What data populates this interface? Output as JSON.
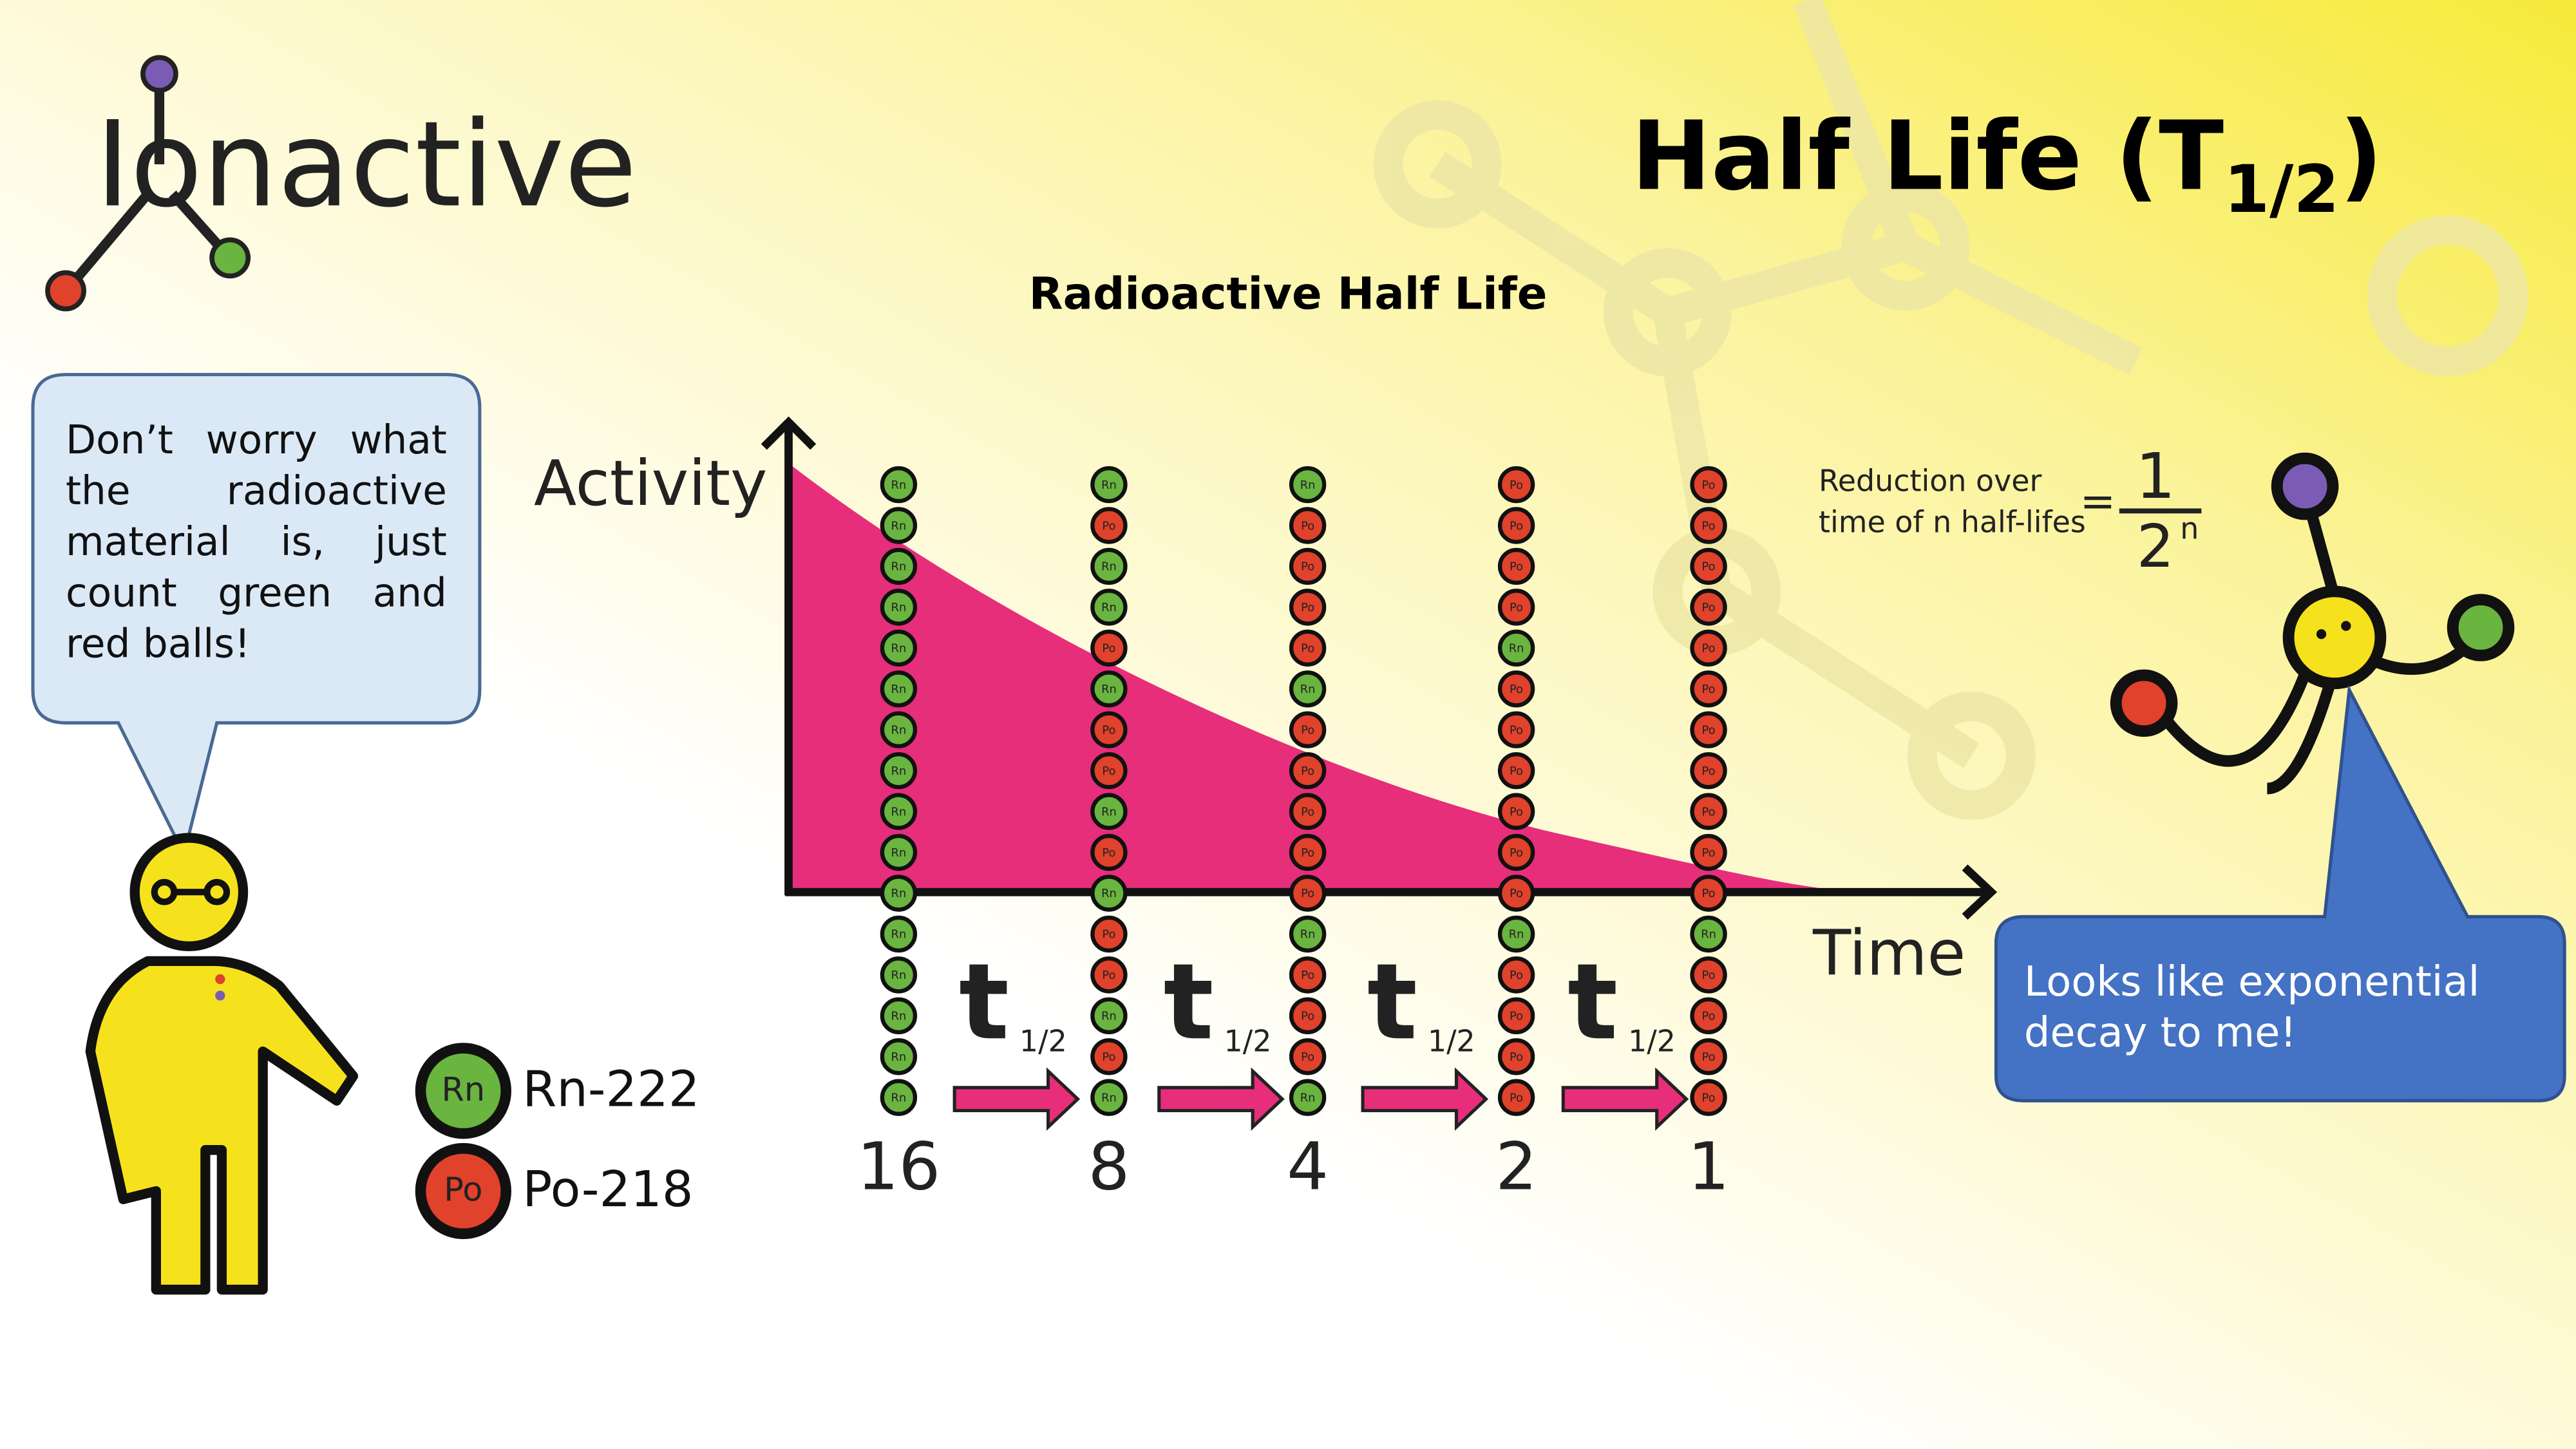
{
  "logo": {
    "text": "Ionactive"
  },
  "title": {
    "main": "Half Life (T",
    "subscript": "1/2",
    "close": ")"
  },
  "diagram": {
    "title": "Radioactive Half Life",
    "y_label": "Activity",
    "x_label": "Time",
    "columns": [
      {
        "count": 16,
        "balls": [
          "Rn",
          "Rn",
          "Rn",
          "Rn",
          "Rn",
          "Rn",
          "Rn",
          "Rn",
          "Rn",
          "Rn",
          "Rn",
          "Rn",
          "Rn",
          "Rn",
          "Rn",
          "Rn"
        ]
      },
      {
        "count": 8,
        "balls": [
          "Rn",
          "Po",
          "Rn",
          "Rn",
          "Po",
          "Rn",
          "Po",
          "Po",
          "Rn",
          "Po",
          "Rn",
          "Po",
          "Po",
          "Rn",
          "Po",
          "Rn"
        ]
      },
      {
        "count": 4,
        "balls": [
          "Rn",
          "Po",
          "Po",
          "Po",
          "Po",
          "Rn",
          "Po",
          "Po",
          "Po",
          "Po",
          "Po",
          "Rn",
          "Po",
          "Po",
          "Po",
          "Rn"
        ]
      },
      {
        "count": 2,
        "balls": [
          "Po",
          "Po",
          "Po",
          "Po",
          "Rn",
          "Po",
          "Po",
          "Po",
          "Po",
          "Po",
          "Po",
          "Rn",
          "Po",
          "Po",
          "Po",
          "Po"
        ]
      },
      {
        "count": 1,
        "balls": [
          "Po",
          "Po",
          "Po",
          "Po",
          "Po",
          "Po",
          "Po",
          "Po",
          "Po",
          "Po",
          "Po",
          "Rn",
          "Po",
          "Po",
          "Po",
          "Po"
        ]
      }
    ],
    "steps": [
      {
        "symbol": "t",
        "subscript": "1/2"
      },
      {
        "symbol": "t",
        "subscript": "1/2"
      },
      {
        "symbol": "t",
        "subscript": "1/2"
      },
      {
        "symbol": "t",
        "subscript": "1/2"
      }
    ]
  },
  "formula": {
    "label_line1": "Reduction over",
    "label_line2": "time of n half-lifes",
    "equals": "=",
    "numerator": "1",
    "denominator": "2",
    "exponent": "n"
  },
  "legend": [
    {
      "symbol": "Rn",
      "label": "Rn-222"
    },
    {
      "symbol": "Po",
      "label": "Po-218"
    }
  ],
  "speech_left": "Don’t worry what the radioactive material is, just count green and red balls!",
  "speech_right": "Looks like exponential decay to me!"
}
